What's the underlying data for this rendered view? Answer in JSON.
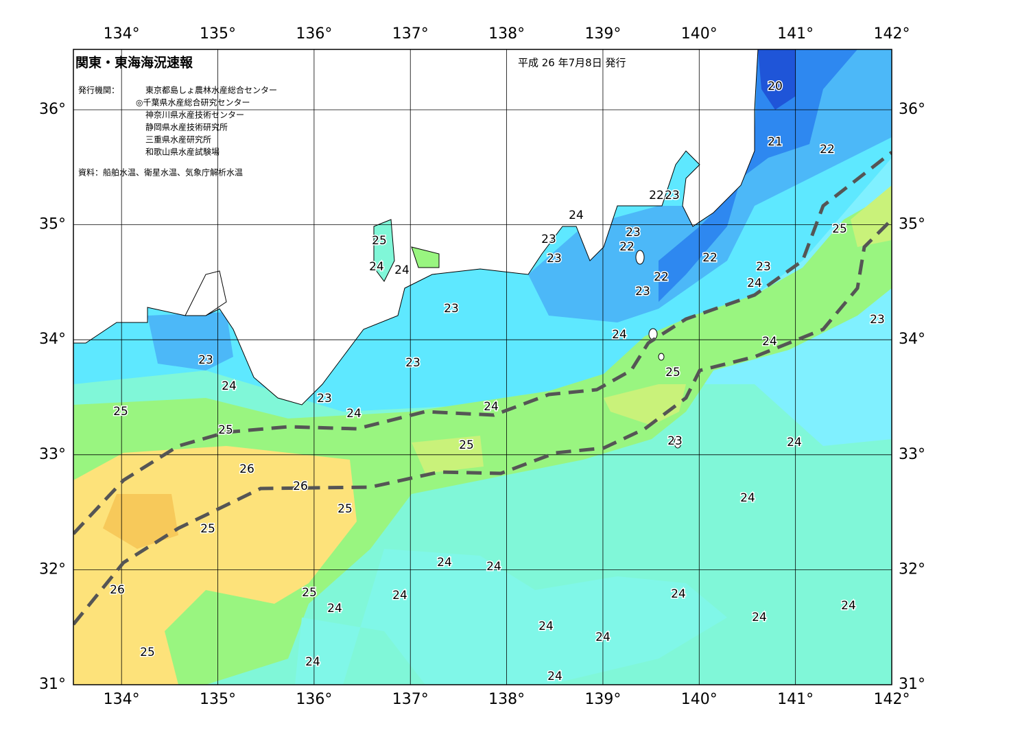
{
  "header": {
    "title": "関東・東海海況速報",
    "date": "平成 26 年7月8日 発行",
    "agency_label": "発行機関：",
    "agencies": [
      "東京都島しょ農林水産総合センター",
      "◎千葉県水産総合研究センター",
      "神奈川県水産技術センター",
      "静岡県水産技術研究所",
      "三重県水産研究所",
      "和歌山県水産試験場"
    ],
    "source": "資料：船舶水温、衛星水温、気象庁解析水温"
  },
  "map": {
    "type": "map",
    "xlim": [
      133.5,
      142
    ],
    "ylim": [
      31,
      36.525
    ],
    "xticks": [
      {
        "value": 134,
        "label": "134°"
      },
      {
        "value": 135,
        "label": "135°"
      },
      {
        "value": 136,
        "label": "136°"
      },
      {
        "value": 137,
        "label": "137°"
      },
      {
        "value": 138,
        "label": "138°"
      },
      {
        "value": 139,
        "label": "139°"
      },
      {
        "value": 140,
        "label": "140°"
      },
      {
        "value": 141,
        "label": "141°"
      },
      {
        "value": 142,
        "label": "142°"
      }
    ],
    "yticks": [
      {
        "value": 31,
        "label": "31°"
      },
      {
        "value": 32,
        "label": "32°"
      },
      {
        "value": 33,
        "label": "33°"
      },
      {
        "value": 34,
        "label": "34°"
      },
      {
        "value": 35,
        "label": "35°"
      },
      {
        "value": 36,
        "label": "36°"
      }
    ],
    "contour_labels": [
      20,
      21,
      22,
      22,
      23,
      24,
      25,
      25,
      23,
      23,
      22,
      23,
      22,
      23,
      24,
      24,
      24,
      22,
      23,
      23,
      23,
      24,
      24,
      23,
      23,
      25,
      24,
      23,
      24,
      24,
      25,
      25,
      23,
      24,
      25,
      26,
      26,
      24,
      25,
      25,
      24,
      24,
      26,
      25,
      24,
      24,
      24,
      24,
      24,
      24,
      24,
      25,
      24,
      24
    ]
  }
}
